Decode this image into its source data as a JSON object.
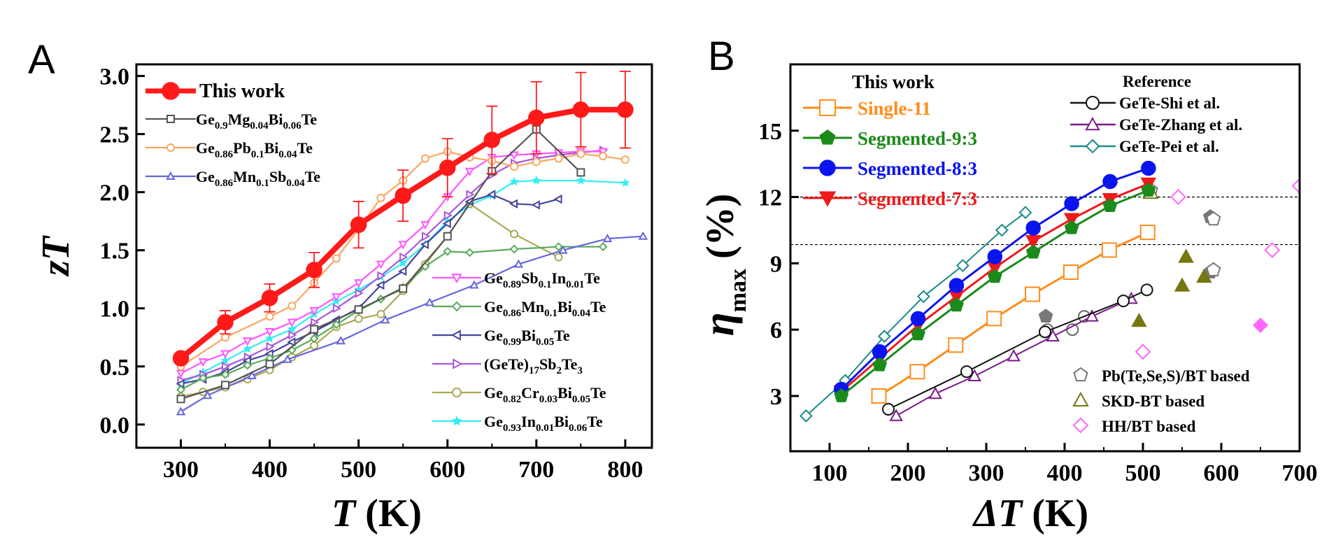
{
  "panels": [
    {
      "label": "A"
    },
    {
      "label": "B"
    }
  ],
  "chart_data": [
    {
      "type": "line",
      "panel": "A",
      "xlabel": "T (K)",
      "ylabel": "zT",
      "xlim": [
        250,
        830
      ],
      "ylim": [
        -0.2,
        3.1
      ],
      "xticks": [
        300,
        400,
        500,
        600,
        700,
        800
      ],
      "yticks": [
        0.0,
        0.5,
        1.0,
        1.5,
        2.0,
        2.5,
        3.0
      ],
      "series": [
        {
          "name": "This work",
          "color": "#ff1a1a",
          "marker": "circle-filled",
          "width": 8,
          "x": [
            300,
            350,
            400,
            450,
            500,
            550,
            600,
            650,
            700,
            750,
            800
          ],
          "y": [
            0.57,
            0.88,
            1.09,
            1.33,
            1.72,
            1.97,
            2.21,
            2.45,
            2.64,
            2.71,
            2.71
          ],
          "err": [
            0.0,
            0.1,
            0.12,
            0.15,
            0.2,
            0.22,
            0.25,
            0.29,
            0.31,
            0.32,
            0.33
          ]
        },
        {
          "name": "Ge0.9Mg0.04Bi0.06Te",
          "color": "#555555",
          "marker": "square-open",
          "x": [
            300,
            350,
            400,
            450,
            500,
            550,
            600,
            650,
            700,
            750
          ],
          "y": [
            0.22,
            0.34,
            0.52,
            0.82,
            0.99,
            1.17,
            1.62,
            2.18,
            2.54,
            2.17
          ]
        },
        {
          "name": "Ge0.86Pb0.1Bi0.04Te",
          "color": "#f7a860",
          "marker": "circle-open",
          "x": [
            300,
            350,
            400,
            425,
            450,
            475,
            500,
            525,
            550,
            575,
            600,
            625,
            650,
            675,
            700,
            725,
            750,
            775,
            800
          ],
          "y": [
            0.5,
            0.75,
            0.93,
            1.02,
            1.22,
            1.43,
            1.68,
            1.95,
            2.1,
            2.29,
            2.35,
            2.3,
            2.27,
            2.22,
            2.26,
            2.29,
            2.33,
            2.31,
            2.28
          ]
        },
        {
          "name": "Ge0.86Mn0.1Sb0.04Te",
          "color": "#6666dd",
          "marker": "triangle-up-open",
          "x": [
            300,
            330,
            380,
            420,
            480,
            530,
            580,
            630,
            680,
            730,
            780,
            820
          ],
          "y": [
            0.11,
            0.25,
            0.42,
            0.56,
            0.72,
            0.9,
            1.05,
            1.2,
            1.38,
            1.5,
            1.6,
            1.62
          ]
        },
        {
          "name": "Ge0.89Sb0.1In0.01Te",
          "color": "#ff55ff",
          "marker": "triangle-down-open",
          "x": [
            300,
            325,
            350,
            375,
            400,
            425,
            450,
            475,
            500,
            525,
            550,
            575,
            600,
            625,
            650,
            675,
            700,
            725,
            750,
            775
          ],
          "y": [
            0.44,
            0.54,
            0.61,
            0.72,
            0.8,
            0.88,
            0.98,
            1.1,
            1.22,
            1.38,
            1.55,
            1.72,
            1.96,
            2.18,
            2.3,
            2.32,
            2.33,
            2.34,
            2.35,
            2.35
          ]
        },
        {
          "name": "Ge0.86Mn0.1Bi0.04Te",
          "color": "#5aaa5a",
          "marker": "diamond-open",
          "x": [
            300,
            325,
            350,
            375,
            400,
            425,
            450,
            475,
            500,
            525,
            550,
            575,
            600,
            625,
            675,
            725,
            775
          ],
          "y": [
            0.3,
            0.4,
            0.43,
            0.51,
            0.57,
            0.64,
            0.74,
            0.86,
            0.98,
            1.08,
            1.18,
            1.36,
            1.49,
            1.48,
            1.51,
            1.53,
            1.53
          ]
        },
        {
          "name": "Ge0.99Bi0.05Te",
          "color": "#444499",
          "marker": "triangle-left-open",
          "x": [
            300,
            325,
            350,
            375,
            400,
            425,
            450,
            475,
            500,
            525,
            550,
            575,
            600,
            625,
            650,
            675,
            700,
            725
          ],
          "y": [
            0.35,
            0.39,
            0.45,
            0.55,
            0.61,
            0.71,
            0.8,
            0.9,
            1.0,
            1.2,
            1.32,
            1.55,
            1.73,
            1.92,
            1.98,
            1.9,
            1.89,
            1.94
          ]
        },
        {
          "name": "(GeTe)17Sb2Te3",
          "color": "#aa55dd",
          "marker": "triangle-right-open",
          "x": [
            300,
            325,
            350,
            375,
            400,
            425,
            450,
            475,
            500,
            525,
            550,
            575,
            600,
            625,
            650,
            675,
            700,
            725,
            750,
            775
          ],
          "y": [
            0.38,
            0.43,
            0.5,
            0.58,
            0.67,
            0.77,
            0.88,
            1.0,
            1.13,
            1.28,
            1.44,
            1.62,
            1.8,
            1.98,
            2.15,
            2.25,
            2.29,
            2.32,
            2.34,
            2.36
          ]
        },
        {
          "name": "Ge0.82Cr0.03Bi0.05Te",
          "color": "#aaaa55",
          "marker": "circle-open",
          "x": [
            300,
            325,
            350,
            375,
            400,
            425,
            450,
            475,
            500,
            525,
            550,
            575,
            600,
            625,
            675,
            725
          ],
          "y": [
            0.24,
            0.28,
            0.32,
            0.39,
            0.47,
            0.58,
            0.68,
            0.84,
            0.91,
            0.95,
            1.15,
            1.38,
            1.62,
            1.9,
            1.64,
            1.44
          ]
        },
        {
          "name": "Ge0.93In0.01Bi0.06Te",
          "color": "#33eeee",
          "marker": "star",
          "x": [
            300,
            325,
            350,
            375,
            400,
            425,
            450,
            475,
            500,
            525,
            550,
            575,
            600,
            625,
            650,
            675,
            700,
            750,
            800
          ],
          "y": [
            0.35,
            0.45,
            0.55,
            0.65,
            0.74,
            0.82,
            0.95,
            1.06,
            1.16,
            1.27,
            1.39,
            1.55,
            1.75,
            1.89,
            1.97,
            2.09,
            2.1,
            2.1,
            2.08
          ]
        }
      ],
      "legend_top": [
        {
          "ref": 0,
          "label": "This work",
          "style": "big"
        },
        {
          "ref": 1,
          "main": [
            "Ge",
            "0.9",
            "Mg",
            "0.04",
            "Bi",
            "0.06",
            "Te"
          ]
        },
        {
          "ref": 2,
          "main": [
            "Ge",
            "0.86",
            "Pb",
            "0.1",
            "Bi",
            "0.04",
            "Te"
          ]
        },
        {
          "ref": 3,
          "main": [
            "Ge",
            "0.86",
            "Mn",
            "0.1",
            "Sb",
            "0.04",
            "Te"
          ]
        }
      ],
      "legend_bottom": [
        {
          "ref": 4,
          "main": [
            "Ge",
            "0.89",
            "Sb",
            "0.1",
            "In",
            "0.01",
            "Te"
          ]
        },
        {
          "ref": 5,
          "main": [
            "Ge",
            "0.86",
            "Mn",
            "0.1",
            "Bi",
            "0.04",
            "Te"
          ]
        },
        {
          "ref": 6,
          "main": [
            "Ge",
            "0.99",
            "Bi",
            "0.05",
            "Te"
          ]
        },
        {
          "ref": 7,
          "main": [
            "(GeTe)",
            "17",
            "Sb",
            "2",
            "Te",
            "3",
            ""
          ]
        },
        {
          "ref": 8,
          "main": [
            "Ge",
            "0.82",
            "Cr",
            "0.03",
            "Bi",
            "0.05",
            "Te"
          ]
        },
        {
          "ref": 9,
          "main": [
            "Ge",
            "0.93",
            "In",
            "0.01",
            "Bi",
            "0.06",
            "Te"
          ]
        }
      ]
    },
    {
      "type": "line",
      "panel": "B",
      "xlabel": "ΔT (K)",
      "ylabel": "η_max (%)",
      "xlim": [
        50,
        700
      ],
      "ylim": [
        0.5,
        18.0
      ],
      "xticks": [
        100,
        200,
        300,
        400,
        500,
        600,
        700
      ],
      "yticks": [
        3,
        6,
        9,
        12,
        15
      ],
      "hlines": [
        12.0,
        9.85
      ],
      "legend_title_left": "This work",
      "legend_title_right": "Reference",
      "series": [
        {
          "name": "Single-11",
          "color": "#ff8c1a",
          "marker": "square-open",
          "width": 3,
          "x": [
            163,
            212,
            261,
            310,
            359,
            408,
            457,
            506
          ],
          "y": [
            3.0,
            4.1,
            5.3,
            6.5,
            7.6,
            8.6,
            9.6,
            10.4
          ]
        },
        {
          "name": "Segmented-9:3",
          "color": "#1a8a1a",
          "marker": "pentagon-filled",
          "width": 3,
          "x": [
            115,
            164,
            213,
            262,
            311,
            360,
            409,
            458,
            507
          ],
          "y": [
            3.0,
            4.4,
            5.8,
            7.1,
            8.4,
            9.5,
            10.6,
            11.6,
            12.3
          ]
        },
        {
          "name": "Segmented-8:3",
          "color": "#0a14ee",
          "marker": "circle-filled",
          "width": 3,
          "x": [
            115,
            164,
            213,
            262,
            311,
            360,
            409,
            458,
            507
          ],
          "y": [
            3.3,
            5.0,
            6.5,
            8.0,
            9.3,
            10.6,
            11.7,
            12.7,
            13.3
          ]
        },
        {
          "name": "Segmented-7:3",
          "color": "#ee1a1a",
          "marker": "triangle-down-filled",
          "width": 3,
          "x": [
            115,
            164,
            213,
            262,
            311,
            360,
            409,
            458,
            507
          ],
          "y": [
            3.2,
            4.7,
            6.2,
            7.5,
            8.8,
            10.0,
            11.0,
            11.9,
            12.6
          ]
        },
        {
          "name": "GeTe-Shi et al.",
          "color": "#111111",
          "marker": "circle-open",
          "width": 2,
          "x": [
            175,
            275,
            375,
            475,
            505
          ],
          "y": [
            2.4,
            4.1,
            5.9,
            7.3,
            7.8
          ]
        },
        {
          "name": "GeTe-Zhang et al.",
          "color": "#7a1a8a",
          "marker": "triangle-up-open",
          "width": 2,
          "x": [
            185,
            235,
            285,
            335,
            385,
            435,
            485
          ],
          "y": [
            2.1,
            3.1,
            3.9,
            4.8,
            5.7,
            6.6,
            7.4
          ]
        },
        {
          "name": "GeTe-Pei et al.",
          "color": "#1a8a8a",
          "marker": "diamond-open",
          "width": 2,
          "x": [
            70,
            120,
            170,
            220,
            270,
            320,
            350
          ],
          "y": [
            2.1,
            3.7,
            5.7,
            7.5,
            8.9,
            10.5,
            11.3
          ]
        }
      ],
      "scatter": [
        {
          "name": "Pb(Te,Se,S)/BT based",
          "color": "#777777",
          "marker": "pentagon",
          "points": [
            [
              376,
              6.6,
              true
            ],
            [
              586,
              11.1,
              true
            ],
            [
              586,
              8.6,
              true
            ],
            [
              590,
              11.0,
              false
            ],
            [
              590,
              8.7,
              false
            ],
            [
              510,
              12.3,
              false
            ]
          ]
        },
        {
          "name": "SKD-BT based",
          "color": "#777711",
          "marker": "triangle",
          "points": [
            [
              495,
              6.4,
              true
            ],
            [
              555,
              9.3,
              true
            ],
            [
              550,
              8.0,
              true
            ],
            [
              578,
              8.4,
              true
            ],
            [
              510,
              12.2,
              false
            ]
          ]
        },
        {
          "name": "HH/BT based",
          "color": "#ff66ff",
          "marker": "diamond",
          "points": [
            [
              500,
              5.0,
              false
            ],
            [
              545,
              12.0,
              false
            ],
            [
              650,
              6.2,
              true
            ],
            [
              665,
              9.6,
              false
            ],
            [
              700,
              12.5,
              false
            ]
          ]
        }
      ],
      "extra_markers": [
        {
          "color": "#666666",
          "marker": "circle-open",
          "x": 378,
          "y": 6.0
        },
        {
          "color": "#666666",
          "marker": "circle-open",
          "x": 410,
          "y": 6.0
        },
        {
          "color": "#666666",
          "marker": "circle-open",
          "x": 425,
          "y": 6.6
        }
      ]
    }
  ]
}
